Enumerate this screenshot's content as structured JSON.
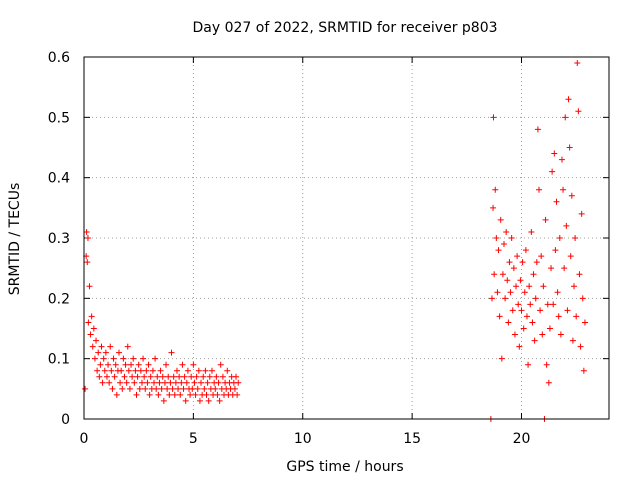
{
  "chart_data": {
    "type": "scatter",
    "title": "Day 027 of 2022, SRMTID for receiver p803",
    "xlabel": "GPS time / hours",
    "ylabel": "SRMTID / TECUs",
    "xlim": [
      0,
      24
    ],
    "ylim": [
      0,
      0.6
    ],
    "xticks": [
      0,
      5,
      10,
      15,
      20
    ],
    "xtick_labels": [
      "0",
      "5",
      "10",
      "15",
      "20"
    ],
    "yticks": [
      0,
      0.1,
      0.2,
      0.3,
      0.4,
      0.5,
      0.6
    ],
    "ytick_labels": [
      "0",
      "0.1",
      "0.2",
      "0.3",
      "0.4",
      "0.5",
      "0.6"
    ],
    "grid": true,
    "marker": "+",
    "color": "#ff0000",
    "series": [
      {
        "name": "SRMTID",
        "points": [
          [
            0.05,
            0.05
          ],
          [
            0.1,
            0.27
          ],
          [
            0.12,
            0.31
          ],
          [
            0.15,
            0.26
          ],
          [
            0.18,
            0.3
          ],
          [
            0.2,
            0.16
          ],
          [
            0.25,
            0.22
          ],
          [
            0.3,
            0.14
          ],
          [
            0.35,
            0.17
          ],
          [
            0.4,
            0.12
          ],
          [
            0.45,
            0.15
          ],
          [
            0.5,
            0.1
          ],
          [
            0.55,
            0.13
          ],
          [
            0.6,
            0.08
          ],
          [
            0.65,
            0.11
          ],
          [
            0.7,
            0.07
          ],
          [
            0.75,
            0.09
          ],
          [
            0.8,
            0.12
          ],
          [
            0.85,
            0.06
          ],
          [
            0.9,
            0.1
          ],
          [
            0.95,
            0.08
          ],
          [
            1.0,
            0.11
          ],
          [
            1.05,
            0.07
          ],
          [
            1.1,
            0.09
          ],
          [
            1.15,
            0.06
          ],
          [
            1.2,
            0.12
          ],
          [
            1.25,
            0.08
          ],
          [
            1.3,
            0.05
          ],
          [
            1.35,
            0.1
          ],
          [
            1.4,
            0.07
          ],
          [
            1.45,
            0.09
          ],
          [
            1.5,
            0.04
          ],
          [
            1.55,
            0.08
          ],
          [
            1.6,
            0.11
          ],
          [
            1.65,
            0.06
          ],
          [
            1.7,
            0.08
          ],
          [
            1.75,
            0.05
          ],
          [
            1.8,
            0.1
          ],
          [
            1.85,
            0.07
          ],
          [
            1.9,
            0.09
          ],
          [
            1.95,
            0.06
          ],
          [
            2.0,
            0.12
          ],
          [
            2.05,
            0.08
          ],
          [
            2.1,
            0.05
          ],
          [
            2.15,
            0.09
          ],
          [
            2.2,
            0.07
          ],
          [
            2.25,
            0.1
          ],
          [
            2.3,
            0.06
          ],
          [
            2.35,
            0.08
          ],
          [
            2.4,
            0.04
          ],
          [
            2.45,
            0.07
          ],
          [
            2.5,
            0.09
          ],
          [
            2.55,
            0.05
          ],
          [
            2.6,
            0.08
          ],
          [
            2.65,
            0.06
          ],
          [
            2.7,
            0.1
          ],
          [
            2.75,
            0.07
          ],
          [
            2.8,
            0.05
          ],
          [
            2.85,
            0.08
          ],
          [
            2.9,
            0.06
          ],
          [
            2.95,
            0.09
          ],
          [
            3.0,
            0.04
          ],
          [
            3.05,
            0.07
          ],
          [
            3.1,
            0.05
          ],
          [
            3.15,
            0.08
          ],
          [
            3.2,
            0.06
          ],
          [
            3.25,
            0.1
          ],
          [
            3.3,
            0.05
          ],
          [
            3.35,
            0.07
          ],
          [
            3.4,
            0.04
          ],
          [
            3.45,
            0.06
          ],
          [
            3.5,
            0.08
          ],
          [
            3.55,
            0.05
          ],
          [
            3.6,
            0.07
          ],
          [
            3.65,
            0.03
          ],
          [
            3.7,
            0.06
          ],
          [
            3.75,
            0.09
          ],
          [
            3.8,
            0.05
          ],
          [
            3.85,
            0.07
          ],
          [
            3.9,
            0.04
          ],
          [
            3.95,
            0.06
          ],
          [
            4.0,
            0.11
          ],
          [
            4.05,
            0.05
          ],
          [
            4.1,
            0.07
          ],
          [
            4.15,
            0.04
          ],
          [
            4.2,
            0.06
          ],
          [
            4.25,
            0.08
          ],
          [
            4.3,
            0.05
          ],
          [
            4.35,
            0.07
          ],
          [
            4.4,
            0.04
          ],
          [
            4.45,
            0.06
          ],
          [
            4.5,
            0.09
          ],
          [
            4.55,
            0.05
          ],
          [
            4.6,
            0.07
          ],
          [
            4.65,
            0.03
          ],
          [
            4.7,
            0.06
          ],
          [
            4.75,
            0.08
          ],
          [
            4.8,
            0.05
          ],
          [
            4.85,
            0.04
          ],
          [
            4.9,
            0.07
          ],
          [
            4.95,
            0.05
          ],
          [
            5.0,
            0.09
          ],
          [
            5.05,
            0.06
          ],
          [
            5.1,
            0.04
          ],
          [
            5.15,
            0.07
          ],
          [
            5.2,
            0.05
          ],
          [
            5.25,
            0.08
          ],
          [
            5.3,
            0.03
          ],
          [
            5.35,
            0.06
          ],
          [
            5.4,
            0.04
          ],
          [
            5.45,
            0.07
          ],
          [
            5.5,
            0.05
          ],
          [
            5.55,
            0.08
          ],
          [
            5.6,
            0.04
          ],
          [
            5.65,
            0.06
          ],
          [
            5.7,
            0.03
          ],
          [
            5.75,
            0.07
          ],
          [
            5.8,
            0.05
          ],
          [
            5.85,
            0.08
          ],
          [
            5.9,
            0.04
          ],
          [
            5.95,
            0.06
          ],
          [
            6.0,
            0.05
          ],
          [
            6.05,
            0.07
          ],
          [
            6.1,
            0.04
          ],
          [
            6.15,
            0.06
          ],
          [
            6.2,
            0.03
          ],
          [
            6.25,
            0.09
          ],
          [
            6.3,
            0.05
          ],
          [
            6.35,
            0.07
          ],
          [
            6.4,
            0.04
          ],
          [
            6.45,
            0.06
          ],
          [
            6.5,
            0.05
          ],
          [
            6.55,
            0.08
          ],
          [
            6.6,
            0.04
          ],
          [
            6.65,
            0.06
          ],
          [
            6.7,
            0.05
          ],
          [
            6.75,
            0.07
          ],
          [
            6.8,
            0.04
          ],
          [
            6.85,
            0.06
          ],
          [
            6.9,
            0.05
          ],
          [
            6.95,
            0.07
          ],
          [
            7.0,
            0.04
          ],
          [
            7.05,
            0.06
          ],
          [
            18.6,
            0.0
          ],
          [
            18.65,
            0.2
          ],
          [
            18.7,
            0.35
          ],
          [
            18.72,
            0.5
          ],
          [
            18.75,
            0.24
          ],
          [
            18.8,
            0.38
          ],
          [
            18.85,
            0.3
          ],
          [
            18.9,
            0.21
          ],
          [
            18.95,
            0.28
          ],
          [
            19.0,
            0.17
          ],
          [
            19.05,
            0.33
          ],
          [
            19.1,
            0.1
          ],
          [
            19.15,
            0.24
          ],
          [
            19.2,
            0.29
          ],
          [
            19.25,
            0.2
          ],
          [
            19.3,
            0.31
          ],
          [
            19.35,
            0.23
          ],
          [
            19.4,
            0.16
          ],
          [
            19.45,
            0.26
          ],
          [
            19.5,
            0.21
          ],
          [
            19.55,
            0.3
          ],
          [
            19.6,
            0.18
          ],
          [
            19.65,
            0.25
          ],
          [
            19.7,
            0.14
          ],
          [
            19.75,
            0.22
          ],
          [
            19.8,
            0.27
          ],
          [
            19.85,
            0.19
          ],
          [
            19.9,
            0.12
          ],
          [
            19.95,
            0.23
          ],
          [
            20.0,
            0.18
          ],
          [
            20.05,
            0.26
          ],
          [
            20.1,
            0.15
          ],
          [
            20.15,
            0.21
          ],
          [
            20.2,
            0.28
          ],
          [
            20.25,
            0.17
          ],
          [
            20.3,
            0.09
          ],
          [
            20.35,
            0.22
          ],
          [
            20.4,
            0.19
          ],
          [
            20.45,
            0.31
          ],
          [
            20.5,
            0.16
          ],
          [
            20.55,
            0.24
          ],
          [
            20.6,
            0.13
          ],
          [
            20.65,
            0.2
          ],
          [
            20.7,
            0.26
          ],
          [
            20.75,
            0.48
          ],
          [
            20.8,
            0.38
          ],
          [
            20.85,
            0.18
          ],
          [
            20.9,
            0.27
          ],
          [
            20.95,
            0.14
          ],
          [
            21.0,
            0.22
          ],
          [
            21.05,
            0.0
          ],
          [
            21.1,
            0.33
          ],
          [
            21.15,
            0.09
          ],
          [
            21.2,
            0.19
          ],
          [
            21.25,
            0.06
          ],
          [
            21.3,
            0.15
          ],
          [
            21.35,
            0.25
          ],
          [
            21.4,
            0.41
          ],
          [
            21.45,
            0.19
          ],
          [
            21.5,
            0.44
          ],
          [
            21.55,
            0.28
          ],
          [
            21.6,
            0.36
          ],
          [
            21.65,
            0.21
          ],
          [
            21.7,
            0.17
          ],
          [
            21.75,
            0.3
          ],
          [
            21.8,
            0.14
          ],
          [
            21.85,
            0.43
          ],
          [
            21.9,
            0.38
          ],
          [
            21.95,
            0.25
          ],
          [
            22.0,
            0.5
          ],
          [
            22.05,
            0.32
          ],
          [
            22.1,
            0.18
          ],
          [
            22.15,
            0.53
          ],
          [
            22.2,
            0.45
          ],
          [
            22.25,
            0.27
          ],
          [
            22.3,
            0.37
          ],
          [
            22.35,
            0.13
          ],
          [
            22.4,
            0.22
          ],
          [
            22.45,
            0.3
          ],
          [
            22.5,
            0.17
          ],
          [
            22.55,
            0.59
          ],
          [
            22.6,
            0.51
          ],
          [
            22.65,
            0.24
          ],
          [
            22.7,
            0.12
          ],
          [
            22.75,
            0.34
          ],
          [
            22.8,
            0.2
          ],
          [
            22.85,
            0.08
          ],
          [
            22.9,
            0.16
          ]
        ]
      }
    ]
  }
}
